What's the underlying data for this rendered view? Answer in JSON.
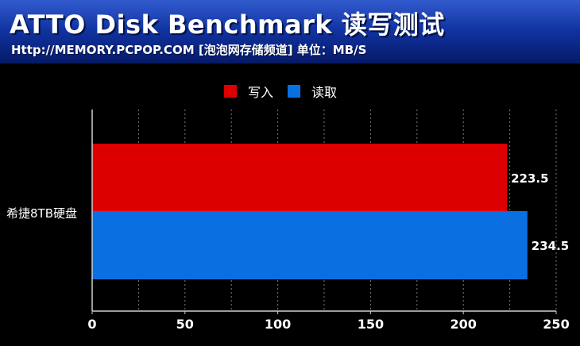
{
  "header": {
    "title": "ATTO Disk Benchmark 读写测试",
    "subtitle": "Http://MEMORY.PCPOP.COM [泡泡网存储频道] 单位：MB/S"
  },
  "chart_data": {
    "type": "bar",
    "orientation": "horizontal",
    "categories": [
      "希捷8TB硬盘"
    ],
    "series": [
      {
        "name": "写入",
        "color": "#dd0000",
        "values": [
          223.5
        ]
      },
      {
        "name": "读取",
        "color": "#0a6fe0",
        "values": [
          234.5
        ]
      }
    ],
    "xlim": [
      0,
      250
    ],
    "xticks": [
      0,
      50,
      100,
      150,
      200,
      250
    ],
    "grid": "vertical-dashed",
    "legend": "top-center",
    "data_labels": [
      "223.5",
      "234.5"
    ]
  }
}
